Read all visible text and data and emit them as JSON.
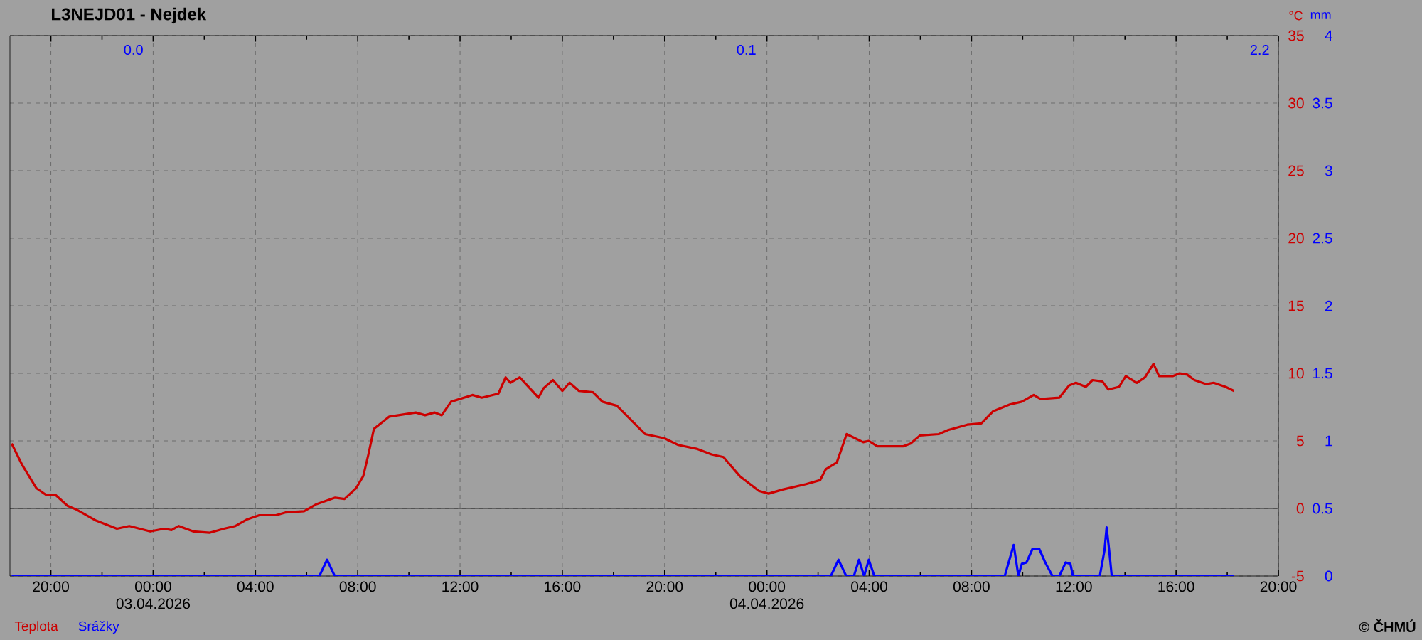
{
  "chart_data": {
    "type": "line",
    "title": "L3NEJD01 - Nejdek",
    "ylabel": "°C",
    "y2label": "mm",
    "xlim": [
      "2026-04-02T18:24",
      "2026-04-04T20:00"
    ],
    "xticks": [
      {
        "value": "2026-04-02T20:00",
        "label": "20:00"
      },
      {
        "value": "2026-04-03T00:00",
        "label": "00:00 03.04.2026"
      },
      {
        "value": "2026-04-03T04:00",
        "label": "04:00"
      },
      {
        "value": "2026-04-03T08:00",
        "label": "08:00"
      },
      {
        "value": "2026-04-03T12:00",
        "label": "12:00"
      },
      {
        "value": "2026-04-03T16:00",
        "label": "16:00"
      },
      {
        "value": "2026-04-03T20:00",
        "label": "20:00"
      },
      {
        "value": "2026-04-04T00:00",
        "label": "00:00 04.04.2026"
      },
      {
        "value": "2026-04-04T04:00",
        "label": "04:00"
      },
      {
        "value": "2026-04-04T08:00",
        "label": "08:00"
      },
      {
        "value": "2026-04-04T12:00",
        "label": "12:00"
      },
      {
        "value": "2026-04-04T16:00",
        "label": "16:00"
      },
      {
        "value": "2026-04-04T20:00",
        "label": "20:00"
      }
    ],
    "ylim": [
      -5,
      35
    ],
    "yticks": [
      -5,
      0,
      5,
      10,
      15,
      20,
      25,
      30,
      35
    ],
    "y2lim": [
      0,
      4
    ],
    "y2ticks": [
      0,
      0.5,
      1,
      1.5,
      2,
      2.5,
      3,
      3.5,
      4
    ],
    "grid": true,
    "legend": "bottom left",
    "marker": "none",
    "line_style": "solid",
    "ref_lines": [
      {
        "axis": "y",
        "value": 0,
        "color": "#000000"
      }
    ],
    "series": [
      {
        "name": "Teplota",
        "color": "#cc0000",
        "x": [
          "2026-04-02T18:28",
          "2026-04-02T18:53",
          "2026-04-02T19:26",
          "2026-04-02T19:49",
          "2026-04-02T20:11",
          "2026-04-02T20:39",
          "2026-04-02T21:01",
          "2026-04-02T21:46",
          "2026-04-02T22:35",
          "2026-04-02T23:04",
          "2026-04-02T23:53",
          "2026-04-03T00:26",
          "2026-04-03T00:43",
          "2026-04-03T01:00",
          "2026-04-03T01:34",
          "2026-04-03T02:12",
          "2026-04-03T02:46",
          "2026-04-03T03:13",
          "2026-04-03T03:41",
          "2026-04-03T04:09",
          "2026-04-03T04:48",
          "2026-04-03T05:10",
          "2026-04-03T05:54",
          "2026-04-03T06:22",
          "2026-04-03T07:07",
          "2026-04-03T07:29",
          "2026-04-03T07:56",
          "2026-04-03T08:13",
          "2026-04-03T08:25",
          "2026-04-03T08:38",
          "2026-04-03T09:14",
          "2026-04-03T10:16",
          "2026-04-03T10:38",
          "2026-04-03T11:00",
          "2026-04-03T11:17",
          "2026-04-03T11:39",
          "2026-04-03T12:29",
          "2026-04-03T12:51",
          "2026-04-03T13:30",
          "2026-04-03T13:47",
          "2026-04-03T13:58",
          "2026-04-03T14:20",
          "2026-04-03T15:04",
          "2026-04-03T15:16",
          "2026-04-03T15:38",
          "2026-04-03T16:00",
          "2026-04-03T16:17",
          "2026-04-03T16:39",
          "2026-04-03T17:12",
          "2026-04-03T17:34",
          "2026-04-03T18:08",
          "2026-04-03T19:14",
          "2026-04-03T19:59",
          "2026-04-03T20:32",
          "2026-04-03T21:17",
          "2026-04-03T21:50",
          "2026-04-03T22:18",
          "2026-04-03T22:56",
          "2026-04-03T23:41",
          "2026-04-04T00:04",
          "2026-04-04T00:37",
          "2026-04-04T01:32",
          "2026-04-04T02:05",
          "2026-04-04T02:18",
          "2026-04-04T02:44",
          "2026-04-04T03:07",
          "2026-04-04T03:46",
          "2026-04-04T03:59",
          "2026-04-04T04:19",
          "2026-04-04T05:20",
          "2026-04-04T05:37",
          "2026-04-04T05:59",
          "2026-04-04T06:43",
          "2026-04-04T07:05",
          "2026-04-04T07:50",
          "2026-04-04T08:23",
          "2026-04-04T08:51",
          "2026-04-04T09:30",
          "2026-04-04T09:58",
          "2026-04-04T10:26",
          "2026-04-04T10:42",
          "2026-04-04T11:26",
          "2026-04-04T11:49",
          "2026-04-04T12:05",
          "2026-04-04T12:28",
          "2026-04-04T12:44",
          "2026-04-04T13:07",
          "2026-04-04T13:21",
          "2026-04-04T13:46",
          "2026-04-04T14:02",
          "2026-04-04T14:28",
          "2026-04-04T14:47",
          "2026-04-04T15:07",
          "2026-04-04T15:20",
          "2026-04-04T15:53",
          "2026-04-04T16:08",
          "2026-04-04T16:26",
          "2026-04-04T16:43",
          "2026-04-04T17:11",
          "2026-04-04T17:28",
          "2026-04-04T17:56",
          "2026-04-04T18:16"
        ],
        "values": [
          4.8,
          3.2,
          1.5,
          1.0,
          1.0,
          0.2,
          -0.1,
          -0.9,
          -1.5,
          -1.3,
          -1.7,
          -1.5,
          -1.6,
          -1.3,
          -1.7,
          -1.8,
          -1.5,
          -1.3,
          -0.8,
          -0.5,
          -0.5,
          -0.3,
          -0.2,
          0.3,
          0.8,
          0.7,
          1.5,
          2.4,
          4.0,
          5.9,
          6.8,
          7.1,
          6.9,
          7.1,
          6.9,
          7.9,
          8.4,
          8.2,
          8.5,
          9.7,
          9.3,
          9.7,
          8.2,
          8.9,
          9.5,
          8.7,
          9.3,
          8.7,
          8.6,
          7.9,
          7.6,
          5.5,
          5.2,
          4.7,
          4.4,
          4.0,
          3.8,
          2.4,
          1.3,
          1.1,
          1.4,
          1.8,
          2.1,
          2.9,
          3.4,
          5.5,
          4.9,
          5.0,
          4.6,
          4.6,
          4.8,
          5.4,
          5.5,
          5.8,
          6.2,
          6.3,
          7.2,
          7.7,
          7.9,
          8.4,
          8.1,
          8.2,
          9.1,
          9.3,
          9.0,
          9.5,
          9.4,
          8.8,
          9.0,
          9.8,
          9.3,
          9.7,
          10.7,
          9.8,
          9.8,
          10.0,
          9.9,
          9.5,
          9.2,
          9.3,
          9.0,
          8.7
        ]
      },
      {
        "name": "Srážky",
        "color": "#0000ff",
        "axis": "y2",
        "x": [
          "2026-04-02T18:28",
          "2026-04-03T06:30",
          "2026-04-03T06:48",
          "2026-04-03T07:06",
          "2026-04-04T02:30",
          "2026-04-04T02:48",
          "2026-04-04T03:06",
          "2026-04-04T03:24",
          "2026-04-04T03:36",
          "2026-04-04T03:48",
          "2026-04-04T03:59",
          "2026-04-04T04:12",
          "2026-04-04T09:18",
          "2026-04-04T09:39",
          "2026-04-04T09:50",
          "2026-04-04T09:58",
          "2026-04-04T10:09",
          "2026-04-04T10:23",
          "2026-04-04T10:39",
          "2026-04-04T10:53",
          "2026-04-04T11:10",
          "2026-04-04T11:26",
          "2026-04-04T11:41",
          "2026-04-04T11:52",
          "2026-04-04T11:58",
          "2026-04-04T13:01",
          "2026-04-04T13:12",
          "2026-04-04T13:17",
          "2026-04-04T13:23",
          "2026-04-04T13:29",
          "2026-04-04T18:16"
        ],
        "values": [
          0,
          0,
          0.12,
          0,
          0,
          0.12,
          0,
          0,
          0.12,
          0,
          0.12,
          0,
          0,
          0.23,
          0,
          0.09,
          0.1,
          0.2,
          0.2,
          0.1,
          0,
          0,
          0.1,
          0.09,
          0,
          0,
          0.19,
          0.36,
          0.19,
          0,
          0
        ]
      }
    ],
    "annotations": [
      "0.0",
      "0.1",
      "2.2",
      "© ČHMÚ"
    ]
  }
}
